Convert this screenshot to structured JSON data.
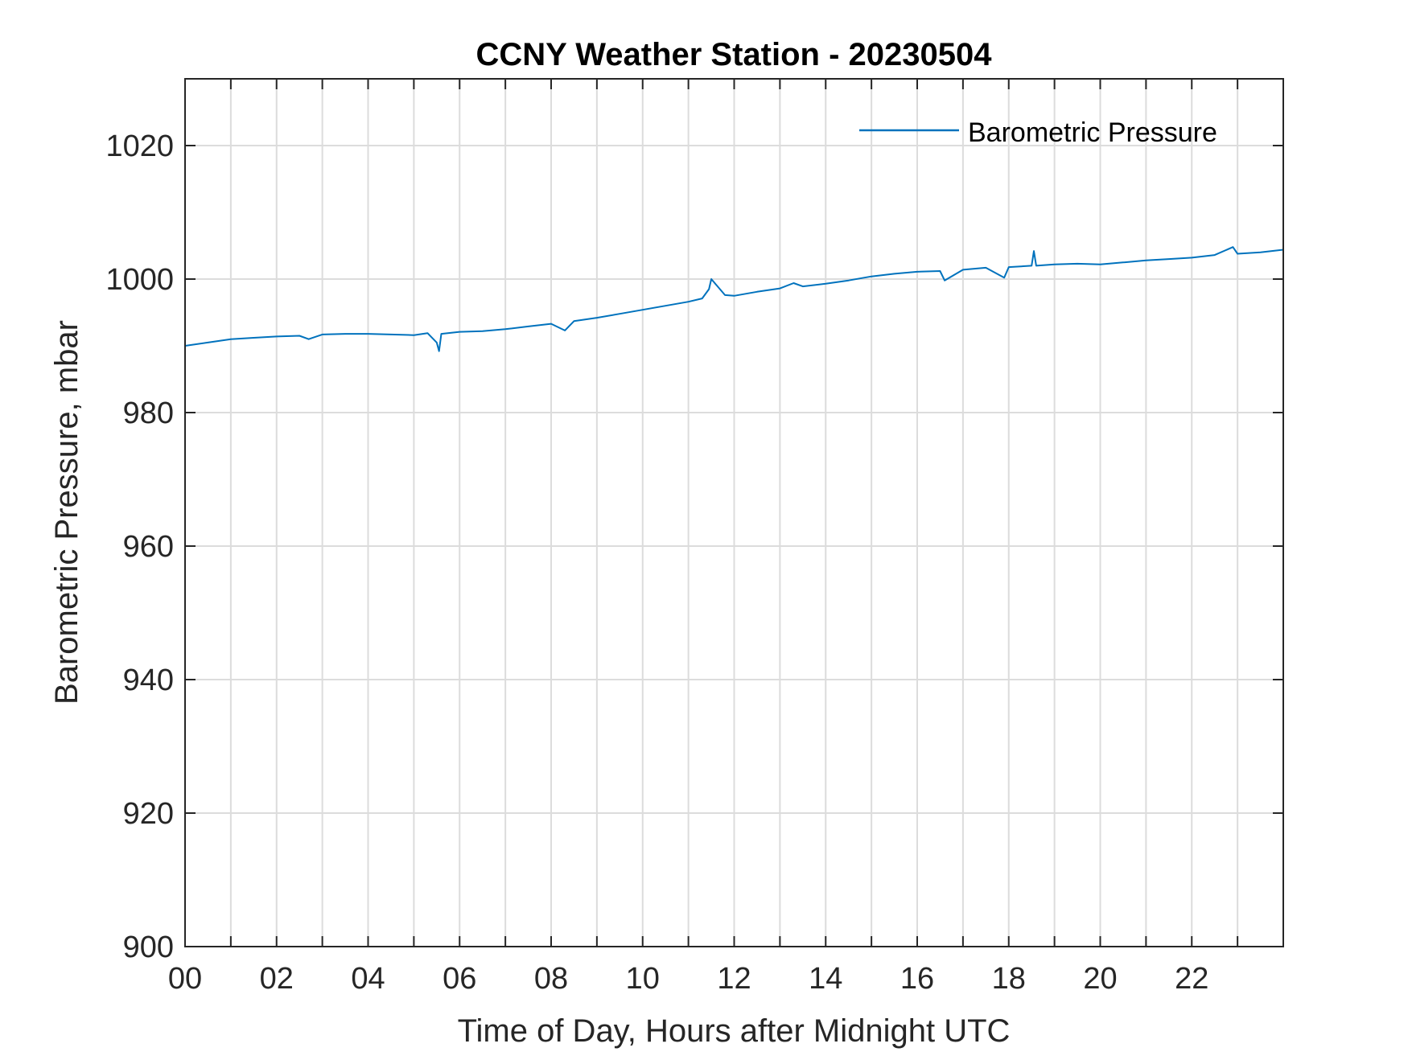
{
  "chart_data": {
    "type": "line",
    "title": "CCNY Weather Station - 20230504",
    "xlabel": "Time of Day, Hours after Midnight UTC",
    "ylabel": "Barometric Pressure, mbar",
    "xlim": [
      0,
      24
    ],
    "ylim": [
      900,
      1030
    ],
    "x_ticks": [
      0,
      2,
      4,
      6,
      8,
      10,
      12,
      14,
      16,
      18,
      20,
      22
    ],
    "x_tick_labels": [
      "00",
      "02",
      "04",
      "06",
      "08",
      "10",
      "12",
      "14",
      "16",
      "18",
      "20",
      "22"
    ],
    "x_grid": [
      0,
      1,
      2,
      3,
      4,
      5,
      6,
      7,
      8,
      9,
      10,
      11,
      12,
      13,
      14,
      15,
      16,
      17,
      18,
      19,
      20,
      21,
      22,
      23
    ],
    "y_ticks": [
      900,
      920,
      940,
      960,
      980,
      1000,
      1020
    ],
    "y_tick_labels": [
      "900",
      "920",
      "940",
      "960",
      "980",
      "1000",
      "1020"
    ],
    "grid": true,
    "legend_position": "top-right",
    "series": [
      {
        "name": "Barometric Pressure",
        "color": "#0072BD",
        "x": [
          0,
          0.5,
          1,
          1.5,
          2,
          2.5,
          2.7,
          3,
          3.5,
          4,
          4.5,
          5,
          5.3,
          5.5,
          5.55,
          5.6,
          6,
          6.5,
          7,
          7.5,
          8,
          8.3,
          8.5,
          9,
          9.5,
          10,
          10.5,
          11,
          11.3,
          11.45,
          11.5,
          11.8,
          12,
          12.5,
          13,
          13.3,
          13.5,
          14,
          14.5,
          15,
          15.5,
          16,
          16.5,
          16.6,
          17,
          17.5,
          17.9,
          18,
          18.5,
          18.55,
          18.6,
          19,
          19.5,
          20,
          20.5,
          21,
          21.5,
          22,
          22.5,
          22.9,
          23,
          23.5,
          24
        ],
        "y": [
          990.0,
          990.5,
          991.0,
          991.2,
          991.4,
          991.5,
          991.0,
          991.7,
          991.8,
          991.8,
          991.7,
          991.6,
          991.9,
          990.5,
          989.2,
          991.8,
          992.1,
          992.2,
          992.5,
          992.9,
          993.3,
          992.3,
          993.7,
          994.2,
          994.8,
          995.4,
          996.0,
          996.6,
          997.1,
          998.5,
          1000.0,
          997.6,
          997.5,
          998.1,
          998.6,
          999.4,
          998.9,
          999.3,
          999.8,
          1000.4,
          1000.8,
          1001.1,
          1001.2,
          999.8,
          1001.4,
          1001.7,
          1000.2,
          1001.8,
          1002.0,
          1004.2,
          1002.0,
          1002.2,
          1002.3,
          1002.2,
          1002.5,
          1002.8,
          1003.0,
          1003.2,
          1003.6,
          1004.8,
          1003.8,
          1004.0,
          1004.4
        ]
      }
    ]
  }
}
